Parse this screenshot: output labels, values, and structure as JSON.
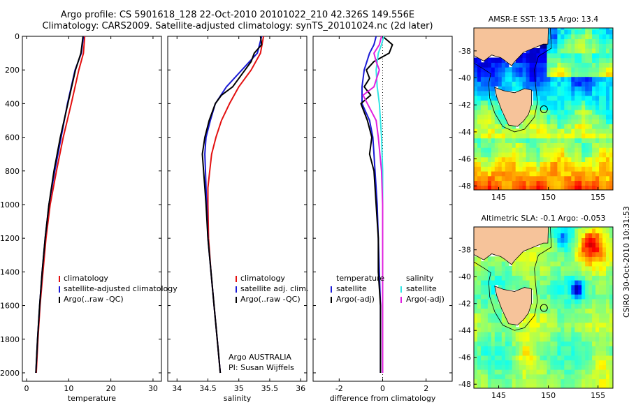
{
  "header": {
    "line1": "Argo profile: CS 5901618_128 22-Oct-2010 20101022_210 42.326S 149.556E",
    "line2": "Climatology: CARS2009. Satellite-adjusted climatology: synTS_20101024.nc (2d later)"
  },
  "credit": {
    "argo": "Argo AUSTRALIA",
    "pi": "PI: Susan Wijffels",
    "side": "CSIRO 30-Oct-2010 10:31:53"
  },
  "colors": {
    "climatology": "#e31010",
    "satellite": "#1a1ad6",
    "argo": "#000000",
    "sat_salinity": "#33e5e5",
    "argo_adj_salinity": "#e020e0",
    "land": "#f6c39a"
  },
  "chart_data": [
    {
      "type": "line",
      "xlabel": "temperature",
      "ylabel": "",
      "xlim": [
        -1,
        32
      ],
      "ylim": [
        2050,
        0
      ],
      "xticks": [
        0,
        10,
        20,
        30
      ],
      "yticks": [
        0,
        200,
        400,
        600,
        800,
        1000,
        1200,
        1400,
        1600,
        1800,
        2000
      ],
      "legend": [
        "climatology",
        "satellite-adjusted climatology",
        "Argo(..raw -QC)"
      ],
      "legend_placement": "lower-right",
      "series": [
        {
          "name": "climatology",
          "color": "#e31010",
          "depth": [
            0,
            100,
            200,
            400,
            600,
            800,
            1000,
            1200,
            1400,
            1600,
            1800,
            2000
          ],
          "values": [
            13.8,
            13.5,
            12.4,
            10.6,
            8.7,
            7.1,
            5.6,
            4.6,
            3.9,
            3.2,
            2.7,
            2.3
          ]
        },
        {
          "name": "satellite-adjusted climatology",
          "color": "#1a1ad6",
          "depth": [
            0,
            100,
            200,
            400,
            600,
            800,
            1000,
            1200,
            1400,
            1600,
            1800,
            2000
          ],
          "values": [
            13.5,
            13.0,
            11.5,
            9.7,
            8.2,
            6.7,
            5.3,
            4.4,
            3.7,
            3.1,
            2.6,
            2.2
          ]
        },
        {
          "name": "Argo(..raw -QC)",
          "color": "#000000",
          "depth": [
            0,
            100,
            200,
            400,
            600,
            800,
            1000,
            1200,
            1400,
            1600,
            1800,
            2000
          ],
          "values": [
            13.4,
            12.9,
            11.6,
            9.8,
            8.0,
            6.5,
            5.3,
            4.4,
            3.7,
            3.1,
            2.6,
            2.2
          ]
        }
      ]
    },
    {
      "type": "line",
      "xlabel": "salinity",
      "xlim": [
        33.85,
        36.1
      ],
      "ylim": [
        2050,
        0
      ],
      "xticks": [
        34,
        34.5,
        35,
        35.5,
        36
      ],
      "xticklabels": [
        "34",
        "34.5",
        "35",
        "35.5",
        "36"
      ],
      "legend": [
        "climatology",
        "satellite adj. clim.",
        "Argo(..raw -QC)"
      ],
      "legend_placement": "lower-right",
      "series": [
        {
          "name": "climatology",
          "color": "#e31010",
          "depth": [
            0,
            100,
            200,
            300,
            400,
            500,
            600,
            700,
            800,
            900,
            1000,
            1200,
            1400,
            1600,
            1800,
            2000
          ],
          "values": [
            35.4,
            35.35,
            35.2,
            35.0,
            34.85,
            34.72,
            34.63,
            34.56,
            34.53,
            34.5,
            34.5,
            34.51,
            34.55,
            34.6,
            34.65,
            34.7
          ]
        },
        {
          "name": "satellite adj. clim.",
          "color": "#1a1ad6",
          "depth": [
            0,
            100,
            200,
            300,
            400,
            500,
            600,
            700,
            800,
            900,
            1000,
            1200,
            1400,
            1600,
            1800,
            2000
          ],
          "values": [
            35.37,
            35.3,
            35.05,
            34.8,
            34.62,
            34.54,
            34.47,
            34.45,
            34.46,
            34.47,
            34.48,
            34.5,
            34.55,
            34.6,
            34.65,
            34.7
          ]
        },
        {
          "name": "Argo(..raw -QC)",
          "color": "#000000",
          "depth": [
            0,
            50,
            100,
            150,
            200,
            300,
            350,
            400,
            500,
            600,
            700,
            800,
            900,
            1000,
            1200,
            1400,
            1600,
            1800,
            2000
          ],
          "values": [
            35.35,
            35.37,
            35.25,
            35.2,
            35.1,
            34.9,
            34.72,
            34.62,
            34.52,
            34.45,
            34.41,
            34.43,
            34.45,
            34.47,
            34.5,
            34.55,
            34.6,
            34.65,
            34.7
          ]
        }
      ]
    },
    {
      "type": "line",
      "xlabel": "difference from climatology",
      "xlim": [
        -3.2,
        3.2
      ],
      "ylim": [
        2050,
        0
      ],
      "xticks": [
        -2,
        0,
        2
      ],
      "legend_temperature_header": "temperature",
      "legend_salinity_header": "salinity",
      "legend_temperature": [
        "satellite",
        "Argo(-adj)"
      ],
      "legend_salinity": [
        "satellite",
        "Argo(-adj)"
      ],
      "legend_placement": "lower",
      "zero_line": true,
      "series": [
        {
          "name": "satellite",
          "group": "temperature",
          "color": "#1a1ad6",
          "depth": [
            0,
            50,
            100,
            200,
            300,
            400,
            500,
            600,
            700,
            800,
            1000,
            1200,
            1400,
            1600,
            1800,
            2000
          ],
          "values": [
            -0.3,
            -0.4,
            -0.6,
            -0.85,
            -0.95,
            -0.95,
            -0.6,
            -0.45,
            -0.4,
            -0.35,
            -0.25,
            -0.2,
            -0.15,
            -0.1,
            -0.1,
            -0.1
          ]
        },
        {
          "name": "Argo(-adj)",
          "group": "temperature",
          "color": "#000000",
          "depth": [
            0,
            50,
            100,
            150,
            200,
            250,
            300,
            350,
            400,
            500,
            600,
            700,
            800,
            1000,
            1200,
            1400,
            1600,
            1800,
            2000
          ],
          "values": [
            0.0,
            0.45,
            0.3,
            -0.4,
            -0.75,
            -0.6,
            -0.85,
            -0.55,
            -1.0,
            -0.7,
            -0.5,
            -0.6,
            -0.4,
            -0.3,
            -0.2,
            -0.2,
            -0.1,
            -0.1,
            -0.1
          ]
        },
        {
          "name": "satellite",
          "group": "salinity",
          "color": "#33e5e5",
          "depth": [
            0,
            50,
            100,
            200,
            300,
            400,
            500,
            600,
            800,
            1000,
            1200,
            1400,
            1600,
            1800,
            2000
          ],
          "values": [
            0.05,
            -0.05,
            -0.2,
            -0.3,
            -0.25,
            -0.15,
            -0.1,
            -0.05,
            0.0,
            0.0,
            0.0,
            0.0,
            0.0,
            0.0,
            0.0
          ]
        },
        {
          "name": "Argo(-adj)",
          "group": "salinity",
          "color": "#e020e0",
          "depth": [
            0,
            50,
            100,
            150,
            200,
            300,
            350,
            400,
            500,
            600,
            800,
            1000,
            1200,
            1400,
            1600,
            1800,
            2000
          ],
          "values": [
            -0.05,
            -0.15,
            -0.4,
            -0.3,
            -0.15,
            -0.4,
            -0.9,
            -0.7,
            -0.3,
            -0.2,
            -0.05,
            0.0,
            0.0,
            0.0,
            0.0,
            0.0,
            0.0
          ]
        }
      ]
    },
    {
      "type": "heatmap",
      "title": "AMSR-E SST: 13.5 Argo: 13.4",
      "xlim": [
        142.5,
        156.5
      ],
      "ylim": [
        -48.3,
        -36.3
      ],
      "xticks": [
        145,
        150,
        155
      ],
      "yticks": [
        -38,
        -40,
        -42,
        -44,
        -46,
        -48
      ],
      "float_marker": {
        "lon": 149.556,
        "lat": -42.326
      },
      "colormap": "jet",
      "value_range": [
        9,
        20
      ]
    },
    {
      "type": "heatmap",
      "title": "Altimetric SLA: -0.1 Argo: -0.053",
      "xlim": [
        142.5,
        156.5
      ],
      "ylim": [
        -48.3,
        -36.3
      ],
      "xticks": [
        145,
        150,
        155
      ],
      "yticks": [
        -38,
        -40,
        -42,
        -44,
        -46,
        -48
      ],
      "float_marker": {
        "lon": 149.556,
        "lat": -42.326
      },
      "colormap": "jet",
      "value_range": [
        -0.6,
        0.6
      ]
    }
  ]
}
